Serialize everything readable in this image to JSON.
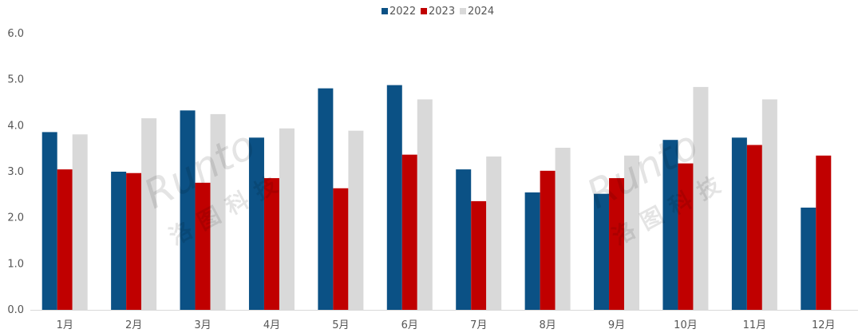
{
  "chart_data": {
    "type": "bar",
    "categories": [
      "1月",
      "2月",
      "3月",
      "4月",
      "5月",
      "6月",
      "7月",
      "8月",
      "9月",
      "10月",
      "11月",
      "12月"
    ],
    "series": [
      {
        "name": "2022",
        "color": "#0B5185",
        "values": [
          3.86,
          3.0,
          4.33,
          3.74,
          4.81,
          4.88,
          3.05,
          2.55,
          2.52,
          3.69,
          3.74,
          2.22
        ]
      },
      {
        "name": "2023",
        "color": "#C00000",
        "values": [
          3.05,
          2.97,
          2.76,
          2.86,
          2.64,
          3.37,
          2.36,
          3.02,
          2.86,
          3.18,
          3.58,
          3.35
        ]
      },
      {
        "name": "2024",
        "color": "#D9D9D9",
        "values": [
          3.81,
          4.16,
          4.25,
          3.94,
          3.89,
          4.57,
          3.33,
          3.52,
          3.35,
          4.84,
          4.57,
          null
        ]
      }
    ],
    "y_ticks": [
      "0.0",
      "1.0",
      "2.0",
      "3.0",
      "4.0",
      "5.0",
      "6.0"
    ],
    "ylim": [
      0,
      6
    ],
    "title": "",
    "xlabel": "",
    "ylabel": "",
    "grid": false,
    "legend_position": "top-center"
  },
  "watermark": {
    "latin": "Runto",
    "chinese": "洛图科技"
  }
}
